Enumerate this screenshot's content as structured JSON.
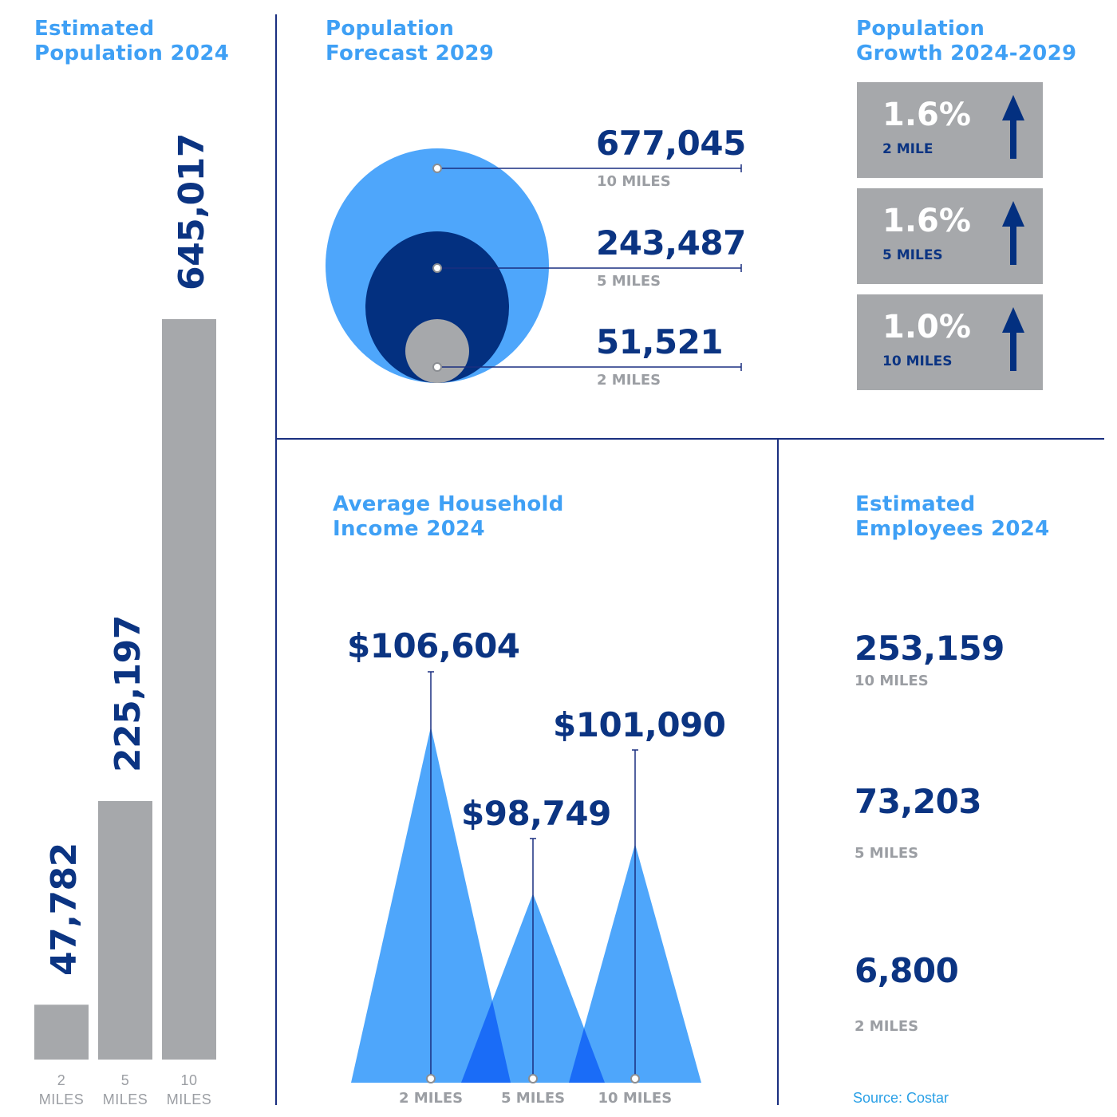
{
  "colors": {
    "title": "#3fa0f5",
    "value": "#0b3482",
    "muted": "#9b9ea3",
    "bar": "#a6a8ab",
    "light_blue": "#4ea6fb",
    "dark_blue": "#033080",
    "overlap_blue": "#1a6cf7",
    "line": "#1a2f80"
  },
  "population_2024": {
    "title_line1": "Estimated",
    "title_line2": "Population 2024",
    "bars": [
      {
        "value": 47782,
        "label": "47,782",
        "cat_line1": "2",
        "cat_line2": "MILES"
      },
      {
        "value": 225197,
        "label": "225,197",
        "cat_line1": "5",
        "cat_line2": "MILES"
      },
      {
        "value": 645017,
        "label": "645,017",
        "cat_line1": "10",
        "cat_line2": "MILES"
      }
    ]
  },
  "forecast_2029": {
    "title_line1": "Population",
    "title_line2": "Forecast 2029",
    "items": [
      {
        "value": 677045,
        "label": "677,045",
        "radius": "10 MILES"
      },
      {
        "value": 243487,
        "label": "243,487",
        "radius": "5 MILES"
      },
      {
        "value": 51521,
        "label": "51,521",
        "radius": "2 MILES"
      }
    ]
  },
  "growth": {
    "title_line1": "Population",
    "title_line2": "Growth 2024-2029",
    "cards": [
      {
        "pct": "1.6%",
        "radius": "2 MILE",
        "icon": "arrow-up-icon"
      },
      {
        "pct": "1.6%",
        "radius": "5 MILES",
        "icon": "arrow-up-icon"
      },
      {
        "pct": "1.0%",
        "radius": "10 MILES",
        "icon": "arrow-up-icon"
      }
    ]
  },
  "income_2024": {
    "title_line1": "Average Household",
    "title_line2": "Income 2024",
    "items": [
      {
        "value": 106604,
        "label": "$106,604",
        "radius": "2 MILES"
      },
      {
        "value": 98749,
        "label": "$98,749",
        "radius": "5 MILES"
      },
      {
        "value": 101090,
        "label": "$101,090",
        "radius": "10 MILES"
      }
    ]
  },
  "employees_2024": {
    "title_line1": "Estimated",
    "title_line2": "Employees 2024",
    "items": [
      {
        "value": 253159,
        "label": "253,159",
        "radius": "10 MILES"
      },
      {
        "value": 73203,
        "label": "73,203",
        "radius": "5 MILES"
      },
      {
        "value": 6800,
        "label": "6,800",
        "radius": "2  MILES"
      }
    ]
  },
  "source": "Source: Costar",
  "chart_data": [
    {
      "type": "bar",
      "title": "Estimated Population 2024",
      "categories": [
        "2 MILES",
        "5 MILES",
        "10 MILES"
      ],
      "values": [
        47782,
        225197,
        645017
      ]
    },
    {
      "type": "bubble",
      "title": "Population Forecast 2029",
      "categories": [
        "10 MILES",
        "5 MILES",
        "2 MILES"
      ],
      "values": [
        677045,
        243487,
        51521
      ]
    },
    {
      "type": "table",
      "title": "Population Growth 2024-2029",
      "categories": [
        "2 MILE",
        "5 MILES",
        "10 MILES"
      ],
      "values": [
        1.6,
        1.6,
        1.0
      ]
    },
    {
      "type": "area",
      "title": "Average Household Income 2024",
      "categories": [
        "2 MILES",
        "5 MILES",
        "10 MILES"
      ],
      "values": [
        106604,
        98749,
        101090
      ]
    },
    {
      "type": "table",
      "title": "Estimated Employees 2024",
      "categories": [
        "10 MILES",
        "5 MILES",
        "2 MILES"
      ],
      "values": [
        253159,
        73203,
        6800
      ]
    }
  ]
}
